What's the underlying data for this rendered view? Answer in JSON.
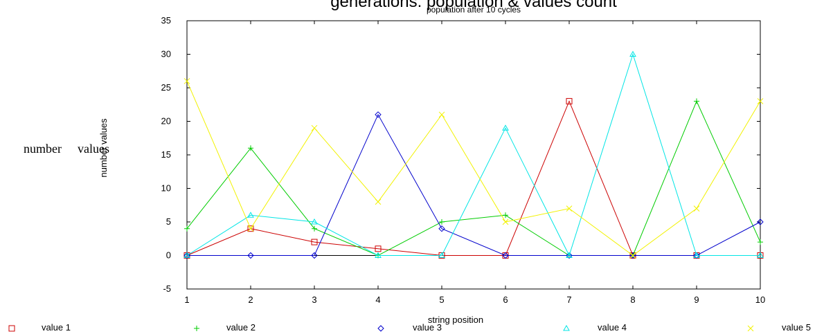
{
  "chart_data": {
    "type": "line",
    "title": "generations: population & values count",
    "subtitle": "population after 10 cycles",
    "xlabel": "string position",
    "ylabel": "number values",
    "x": [
      1,
      2,
      3,
      4,
      5,
      6,
      7,
      8,
      9,
      10
    ],
    "xlim": [
      1,
      10
    ],
    "ylim": [
      -5,
      35
    ],
    "yticks": [
      -5,
      0,
      5,
      10,
      15,
      20,
      25,
      30,
      35
    ],
    "grid": false,
    "legend_position": "bottom",
    "series": [
      {
        "name": "value 1",
        "color": "#cc0000",
        "marker": "square",
        "values": [
          0,
          4,
          2,
          1,
          0,
          0,
          23,
          0,
          0,
          0
        ]
      },
      {
        "name": "value 2",
        "color": "#00cc00",
        "marker": "plus",
        "values": [
          4,
          16,
          4,
          0,
          5,
          6,
          0,
          0,
          23,
          2
        ]
      },
      {
        "name": "value 3",
        "color": "#0000cc",
        "marker": "diamond",
        "values": [
          0,
          0,
          0,
          21,
          4,
          0,
          0,
          0,
          0,
          5
        ]
      },
      {
        "name": "value 4",
        "color": "#00e5e5",
        "marker": "triangle",
        "values": [
          0,
          6,
          5,
          0,
          0,
          19,
          0,
          30,
          0,
          0
        ]
      },
      {
        "name": "value 5",
        "color": "#f2f200",
        "marker": "cross",
        "values": [
          26,
          4,
          19,
          8,
          21,
          5,
          7,
          0,
          7,
          23
        ]
      }
    ]
  },
  "stray_labels": [
    "number",
    "values"
  ]
}
